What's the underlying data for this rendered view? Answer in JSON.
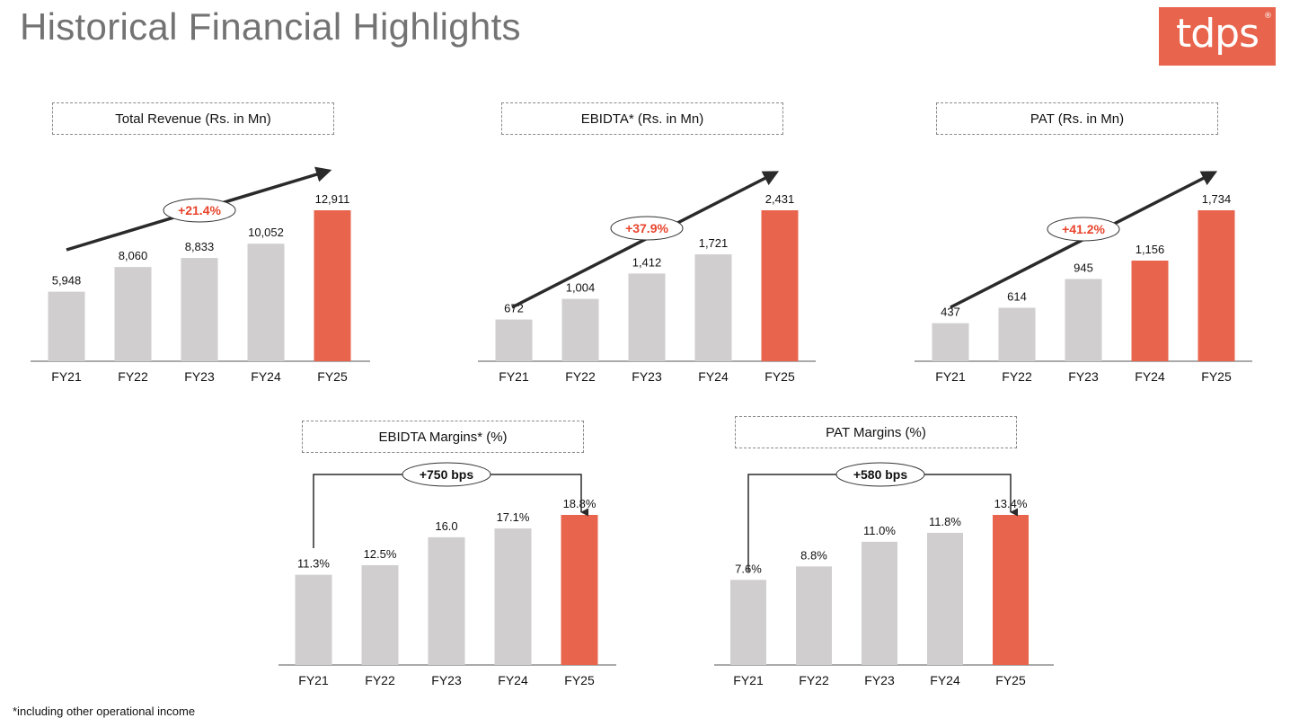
{
  "page": {
    "title": "Historical Financial Highlights",
    "logo_text": "tdps",
    "logo_mark": "®",
    "footnote": "*including other operational income"
  },
  "colors": {
    "highlight_bar": "#e8644c",
    "normal_bar": "#d0cece",
    "cagr_text": "#e8442c",
    "arrow": "#2a2a2a"
  },
  "chart_data": [
    {
      "type": "bar",
      "title": "Total Revenue (Rs. in Mn)",
      "categories": [
        "FY21",
        "FY22",
        "FY23",
        "FY24",
        "FY25"
      ],
      "values": [
        5948,
        8060,
        8833,
        10052,
        12911
      ],
      "value_labels": [
        "5,948",
        "8,060",
        "8,833",
        "10,052",
        "12,911"
      ],
      "highlighted": [
        "FY25"
      ],
      "growth_label": "+21.4%",
      "ylim": [
        0,
        12911
      ]
    },
    {
      "type": "bar",
      "title": "EBIDTA* (Rs. in Mn)",
      "categories": [
        "FY21",
        "FY22",
        "FY23",
        "FY24",
        "FY25"
      ],
      "values": [
        672,
        1004,
        1412,
        1721,
        2431
      ],
      "value_labels": [
        "672",
        "1,004",
        "1,412",
        "1,721",
        "2,431"
      ],
      "highlighted": [
        "FY25"
      ],
      "growth_label": "+37.9%",
      "ylim": [
        0,
        2431
      ]
    },
    {
      "type": "bar",
      "title": "PAT (Rs. in Mn)",
      "categories": [
        "FY21",
        "FY22",
        "FY23",
        "FY24",
        "FY25"
      ],
      "values": [
        437,
        614,
        945,
        1156,
        1734
      ],
      "value_labels": [
        "437",
        "614",
        "945",
        "1,156",
        "1,734"
      ],
      "highlighted": [
        "FY24",
        "FY25"
      ],
      "growth_label": "+41.2%",
      "ylim": [
        0,
        1734
      ]
    },
    {
      "type": "bar",
      "title": "EBIDTA Margins* (%)",
      "categories": [
        "FY21",
        "FY22",
        "FY23",
        "FY24",
        "FY25"
      ],
      "values": [
        11.3,
        12.5,
        16.0,
        17.1,
        18.8
      ],
      "value_labels": [
        "11.3%",
        "12.5%",
        "16.0",
        "17.1%",
        "18.8%"
      ],
      "highlighted": [
        "FY25"
      ],
      "change_label": "+750 bps",
      "ylim": [
        0,
        18.8
      ]
    },
    {
      "type": "bar",
      "title": "PAT Margins (%)",
      "categories": [
        "FY21",
        "FY22",
        "FY23",
        "FY24",
        "FY25"
      ],
      "values": [
        7.6,
        8.8,
        11.0,
        11.8,
        13.4
      ],
      "value_labels": [
        "7.6%",
        "8.8%",
        "11.0%",
        "11.8%",
        "13.4%"
      ],
      "highlighted": [
        "FY25"
      ],
      "change_label": "+580 bps",
      "ylim": [
        0,
        13.4
      ]
    }
  ]
}
